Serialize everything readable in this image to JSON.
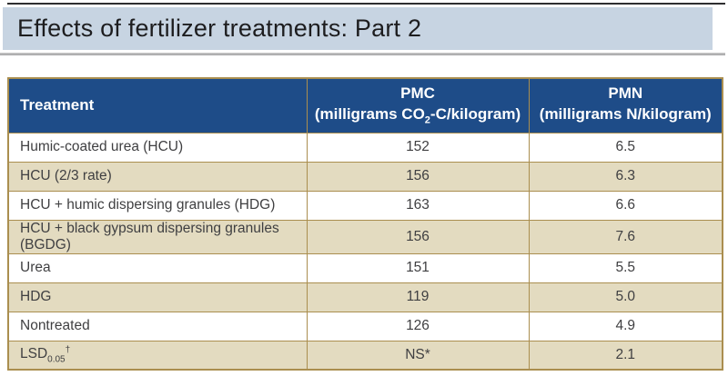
{
  "title": {
    "text": "Effects of fertilizer treatments: Part 2"
  },
  "table": {
    "columns": [
      {
        "id": "treatment",
        "label": "Treatment"
      },
      {
        "id": "pmc",
        "line1": "PMC",
        "line2": {
          "pre": "(milligrams CO",
          "sub": "2",
          "post": "-C/kilogram)"
        }
      },
      {
        "id": "pmn",
        "line1": "PMN",
        "line2": {
          "pre": "(milligrams N/kilogram)",
          "sub": "",
          "post": ""
        }
      }
    ],
    "rows": [
      {
        "treatment": {
          "pre": "Humic-coated urea (HCU)"
        },
        "pmc": "152",
        "pmn": "6.5"
      },
      {
        "treatment": {
          "pre": "HCU (2/3 rate)"
        },
        "pmc": "156",
        "pmn": "6.3"
      },
      {
        "treatment": {
          "pre": "HCU + humic dispersing granules (HDG)"
        },
        "pmc": "163",
        "pmn": "6.6"
      },
      {
        "treatment": {
          "pre": "HCU + black gypsum dispersing granules (BGDG)"
        },
        "pmc": "156",
        "pmn": "7.6"
      },
      {
        "treatment": {
          "pre": "Urea"
        },
        "pmc": "151",
        "pmn": "5.5"
      },
      {
        "treatment": {
          "pre": "HDG"
        },
        "pmc": "119",
        "pmn": "5.0"
      },
      {
        "treatment": {
          "pre": "Nontreated"
        },
        "pmc": "126",
        "pmn": "4.9"
      },
      {
        "treatment": {
          "pre": "LSD",
          "sub": "0.05",
          "sup": "†"
        },
        "pmc": "NS*",
        "pmn": "2.1"
      }
    ]
  },
  "colors": {
    "header_bg": "#1e4c88",
    "row_alt": "#e3dbc0",
    "row_main": "#ffffff",
    "border_gold": "#aa8e4f",
    "title_bg": "#c7d4e2",
    "title_text": "#1d1d1f",
    "cell_text": "#3f3f41"
  },
  "chart_data": {
    "type": "table",
    "title": "Effects of fertilizer treatments: Part 2",
    "columns": [
      "Treatment",
      "PMC (milligrams CO2-C/kilogram)",
      "PMN (milligrams N/kilogram)"
    ],
    "rows": [
      [
        "Humic-coated urea (HCU)",
        "152",
        "6.5"
      ],
      [
        "HCU (2/3 rate)",
        "156",
        "6.3"
      ],
      [
        "HCU + humic dispersing granules (HDG)",
        "163",
        "6.6"
      ],
      [
        "HCU + black gypsum dispersing granules (BGDG)",
        "156",
        "7.6"
      ],
      [
        "Urea",
        "151",
        "5.5"
      ],
      [
        "HDG",
        "119",
        "5.0"
      ],
      [
        "Nontreated",
        "126",
        "4.9"
      ],
      [
        "LSD 0.05 †",
        "NS*",
        "2.1"
      ]
    ]
  }
}
